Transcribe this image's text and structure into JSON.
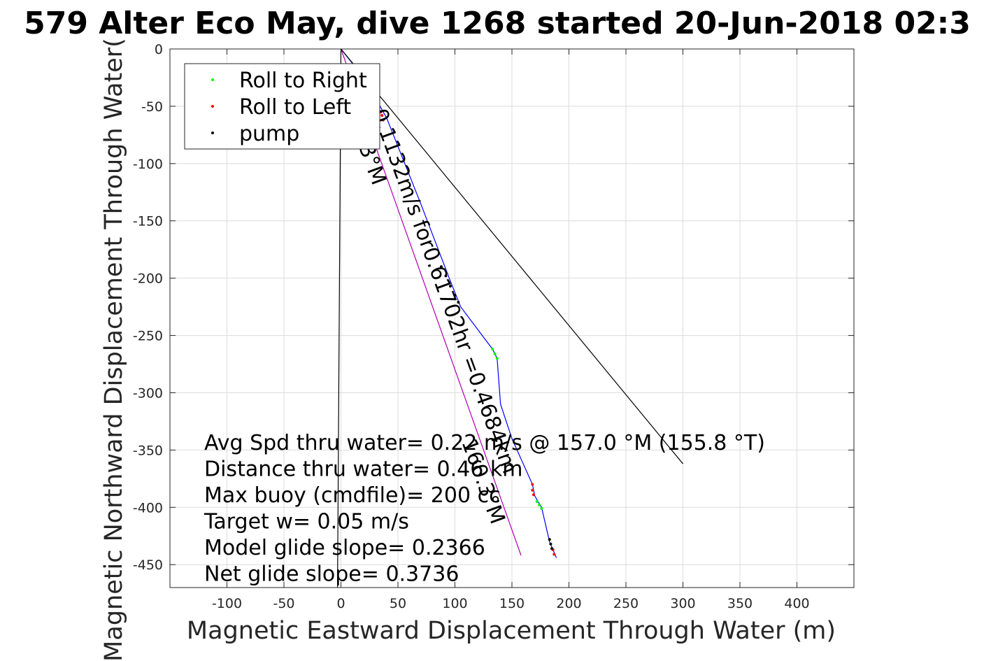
{
  "chart_data": {
    "type": "scatter",
    "title": "579 Alter Eco May, dive 1268 started 20-Jun-2018 02:3",
    "xlabel": "Magnetic Eastward Displacement Through Water (m)",
    "ylabel": "Magnetic Northward Displacement Through Water(",
    "xlim": [
      -150,
      450
    ],
    "ylim": [
      -470,
      0
    ],
    "xticks": [
      -100,
      -50,
      0,
      50,
      100,
      150,
      200,
      250,
      300,
      350,
      400
    ],
    "yticks": [
      0,
      -50,
      -100,
      -150,
      -200,
      -250,
      -300,
      -350,
      -400,
      -450
    ],
    "grid": true,
    "legend_position": "top-left",
    "series": [
      {
        "name": "Roll to Right",
        "color": "#00ff00",
        "marker": "dot",
        "x": [
          0,
          133,
          135,
          137,
          172,
          174,
          176
        ],
        "y": [
          -15,
          -262,
          -266,
          -270,
          -395,
          -398,
          -401
        ]
      },
      {
        "name": "Roll to Left",
        "color": "#ff0000",
        "marker": "dot",
        "x": [
          35,
          36,
          37,
          168,
          168,
          169,
          186,
          187
        ],
        "y": [
          -55,
          -58,
          -62,
          -380,
          -385,
          -389,
          -437,
          -441
        ]
      },
      {
        "name": "pump",
        "color": "#000000",
        "marker": "dot",
        "x": [
          88,
          92,
          96,
          100,
          103,
          183,
          184,
          185
        ],
        "y": [
          -190,
          -198,
          -207,
          -215,
          -221,
          -428,
          -432,
          -436
        ]
      }
    ],
    "lines": [
      {
        "color": "#0000ff",
        "x": [
          0,
          20,
          40,
          70,
          95,
          105,
          133,
          137,
          140,
          150,
          168,
          170,
          176,
          183,
          186,
          189
        ],
        "y": [
          0,
          -25,
          -60,
          -135,
          -200,
          -225,
          -262,
          -270,
          -310,
          -340,
          -380,
          -390,
          -400,
          -430,
          -437,
          -444
        ]
      },
      {
        "color": "#b000b0",
        "x": [
          0,
          158
        ],
        "y": [
          0,
          -442
        ]
      },
      {
        "color": "#000000",
        "x": [
          0,
          300
        ],
        "y": [
          0,
          -362
        ]
      },
      {
        "color": "#000000",
        "x": [
          0,
          -3
        ],
        "y": [
          0,
          -470
        ]
      }
    ],
    "rotated_annotations": [
      "0.1132m/s for0.61702hr =0.4684km",
      "160.3°M",
      "3°M"
    ],
    "annotations": [
      "Avg Spd thru water=  0.22 m/s @ 157.0 °M (155.8 °T)",
      "Distance thru water=  0.46 km",
      "Max buoy (cmdfile)= 200 cc",
      "Target w= 0.05 m/s",
      "Model glide slope= 0.2366",
      "Net glide slope= 0.3736"
    ]
  }
}
